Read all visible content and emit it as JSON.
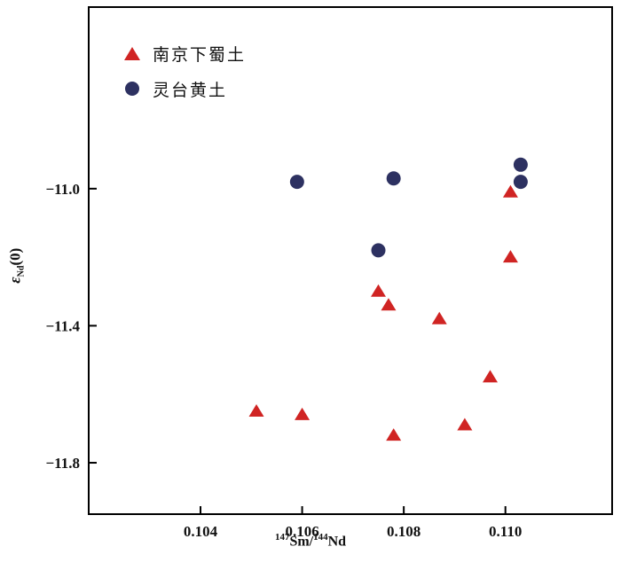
{
  "chart_data": {
    "type": "scatter",
    "title": "",
    "grid": false,
    "legend_position": "top-left-inside",
    "xlabel_parts": {
      "sup1": "147",
      "mid": "Sm/",
      "sup2": "144",
      "end": "Nd"
    },
    "ylabel_parts": {
      "sym": "ε",
      "sub": "Nd",
      "end": "(0)"
    },
    "xlim": [
      0.1018,
      0.1121
    ],
    "ylim": [
      -11.95,
      -10.47
    ],
    "x_ticks": [
      0.104,
      0.106,
      0.108,
      0.11
    ],
    "x_tick_labels": [
      "0.104",
      "0.106",
      "0.108",
      "0.110"
    ],
    "y_ticks": [
      -11.0,
      -11.4,
      -11.8
    ],
    "y_tick_labels": [
      "−11.0",
      "−11.4",
      "−11.8"
    ],
    "series": [
      {
        "name": "南京下蜀土",
        "marker": "triangle",
        "color": "#d02423",
        "points": [
          [
            0.1051,
            -11.65
          ],
          [
            0.106,
            -11.66
          ],
          [
            0.1075,
            -11.3
          ],
          [
            0.1077,
            -11.34
          ],
          [
            0.1078,
            -11.72
          ],
          [
            0.1087,
            -11.38
          ],
          [
            0.1092,
            -11.69
          ],
          [
            0.1097,
            -11.55
          ],
          [
            0.1101,
            -11.01
          ],
          [
            0.1101,
            -11.2
          ]
        ]
      },
      {
        "name": "灵台黄土",
        "marker": "circle",
        "color": "#2d3161",
        "points": [
          [
            0.1059,
            -10.98
          ],
          [
            0.1075,
            -11.18
          ],
          [
            0.1078,
            -10.97
          ],
          [
            0.1103,
            -10.93
          ],
          [
            0.1103,
            -10.98
          ]
        ]
      }
    ]
  }
}
